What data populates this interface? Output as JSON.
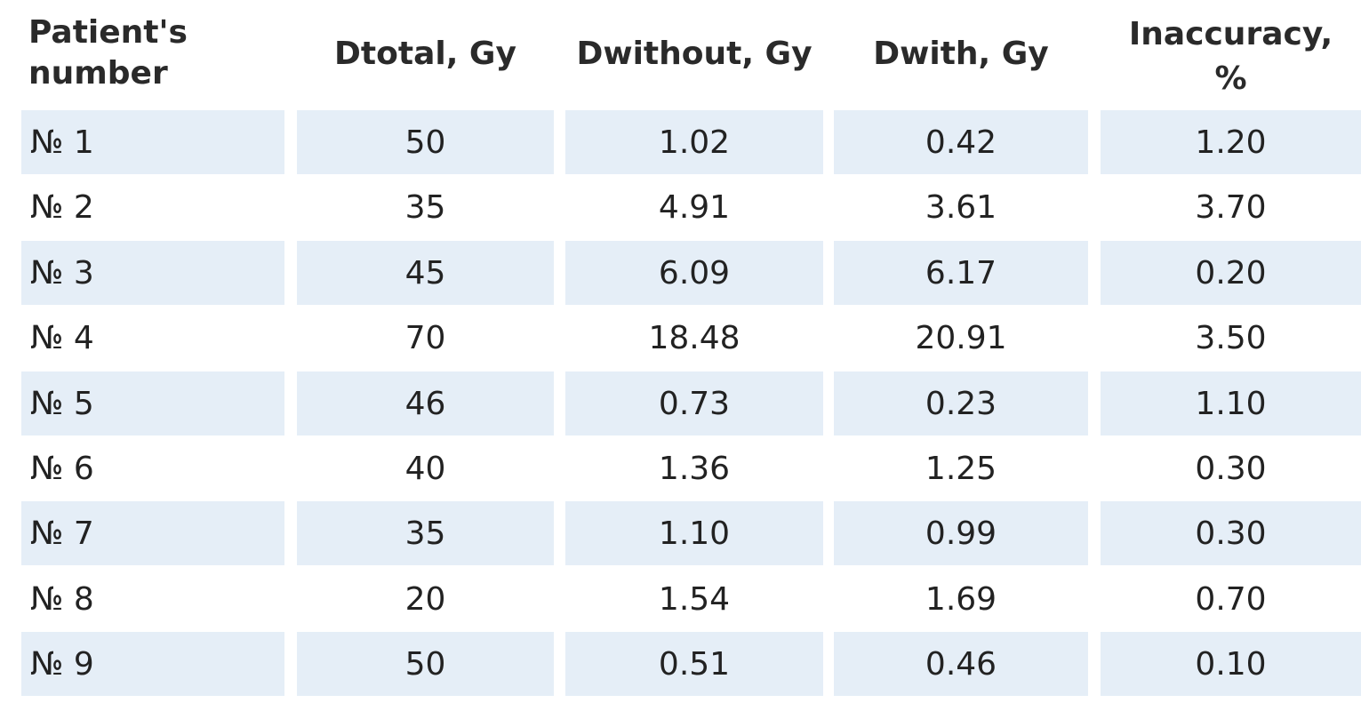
{
  "table": {
    "headers": [
      "Patient's\nnumber",
      "Dtotal, Gy",
      "Dwithout, Gy",
      "Dwith, Gy",
      "Inaccuracy,\n%"
    ],
    "rows": [
      [
        "№ 1",
        "50",
        "1.02",
        "0.42",
        "1.20"
      ],
      [
        "№ 2",
        "35",
        "4.91",
        "3.61",
        "3.70"
      ],
      [
        "№ 3",
        "45",
        "6.09",
        "6.17",
        "0.20"
      ],
      [
        "№ 4",
        "70",
        "18.48",
        "20.91",
        "3.50"
      ],
      [
        "№ 5",
        "46",
        "0.73",
        "0.23",
        "1.10"
      ],
      [
        "№ 6",
        "40",
        "1.36",
        "1.25",
        "0.30"
      ],
      [
        "№ 7",
        "35",
        "1.10",
        "0.99",
        "0.30"
      ],
      [
        "№ 8",
        "20",
        "1.54",
        "1.69",
        "0.70"
      ],
      [
        "№ 9",
        "50",
        "0.51",
        "0.46",
        "0.10"
      ]
    ],
    "shaded_row_color": "#e5eef7"
  }
}
